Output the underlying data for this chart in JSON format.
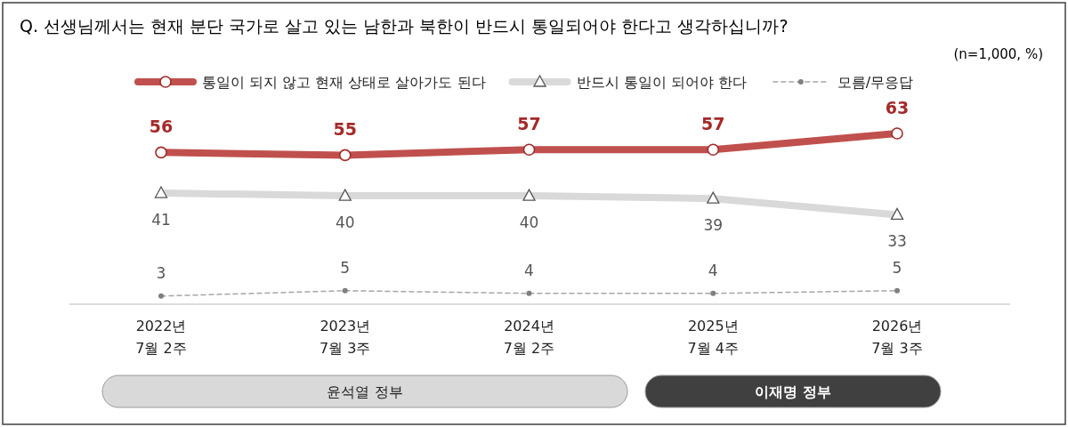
{
  "chart_data": {
    "type": "line",
    "title": "Q. 선생님께서는 현재 분단 국가로 살고 있는 남한과 북한이 반드시 통일되어야 한다고 생각하십니까?",
    "subtitle": "(n=1,000, %)",
    "categories": [
      "2022년\n7월 2주",
      "2023년\n7월 3주",
      "2024년\n7월 2주",
      "2025년\n7월 4주",
      "2026년\n7월 3주"
    ],
    "series": [
      {
        "name": "통일이 되지 않고 현재 상태로 살아가도 된다",
        "color": "#c0504d",
        "marker": "circle",
        "line_style": "solid",
        "values": [
          56,
          55,
          57,
          57,
          63
        ]
      },
      {
        "name": "반드시 통일이 되어야 한다",
        "color": "#d9d9d9",
        "marker": "triangle",
        "line_style": "solid",
        "values": [
          41,
          40,
          40,
          39,
          33
        ]
      },
      {
        "name": "모름/무응답",
        "color": "#a6a6a6",
        "marker": "circle",
        "line_style": "dashed",
        "values": [
          3,
          5,
          4,
          4,
          5
        ]
      }
    ],
    "annotations": [
      "윤석열 정부",
      "이재명 정부"
    ],
    "data_labels": true,
    "legend": "top"
  }
}
